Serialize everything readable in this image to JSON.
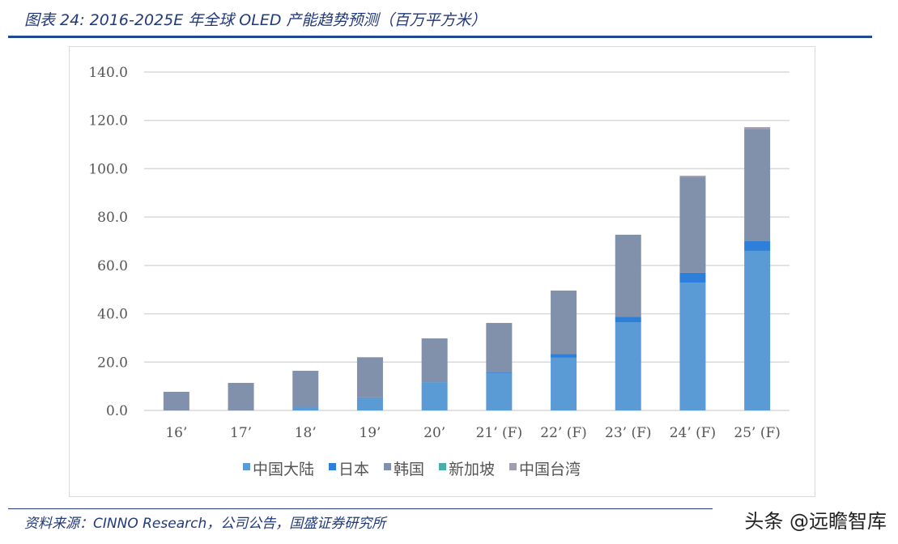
{
  "header": {
    "title": "图表 24:  2016-2025E 年全球 OLED 产能趋势预测（百万平方米）"
  },
  "footer": {
    "source": "资料来源：CINNO Research，公司公告，国盛证券研究所",
    "watermark": "头条 @远瞻智库"
  },
  "chart_data": {
    "type": "bar",
    "stacked": true,
    "title": "2016-2025E 年全球 OLED 产能趋势预测（百万平方米）",
    "categories": [
      "16’",
      "17’",
      "18’",
      "19’",
      "20’",
      "21’ (F)",
      "22’ (F)",
      "23’ (F)",
      "24’ (F)",
      "25’ (F)"
    ],
    "ylim": [
      0,
      140
    ],
    "yticks": [
      "0.0",
      "20.0",
      "40.0",
      "60.0",
      "80.0",
      "100.0",
      "120.0",
      "140.0"
    ],
    "grid": true,
    "legend_position": "bottom",
    "series": [
      {
        "name": "中国大陆",
        "color": "#5b9bd5",
        "values": [
          0,
          0,
          1.5,
          5.4,
          11.7,
          15.4,
          21.8,
          36.5,
          52.9,
          66.0
        ]
      },
      {
        "name": "日本",
        "color": "#2e7fd9",
        "values": [
          0,
          0,
          0,
          0,
          0,
          0.3,
          1.6,
          2.3,
          4.1,
          4.0
        ]
      },
      {
        "name": "韩国",
        "color": "#8190ab",
        "values": [
          7.7,
          11.4,
          14.9,
          16.6,
          18.1,
          20.5,
          26.2,
          33.9,
          39.6,
          46.5
        ]
      },
      {
        "name": "新加坡",
        "color": "#4bacac",
        "values": [
          0,
          0,
          0,
          0,
          0,
          0,
          0,
          0,
          0,
          0
        ]
      },
      {
        "name": "中国台湾",
        "color": "#a39bb0",
        "values": [
          0,
          0,
          0,
          0,
          0,
          0,
          0,
          0,
          0.5,
          0.7
        ]
      }
    ]
  }
}
